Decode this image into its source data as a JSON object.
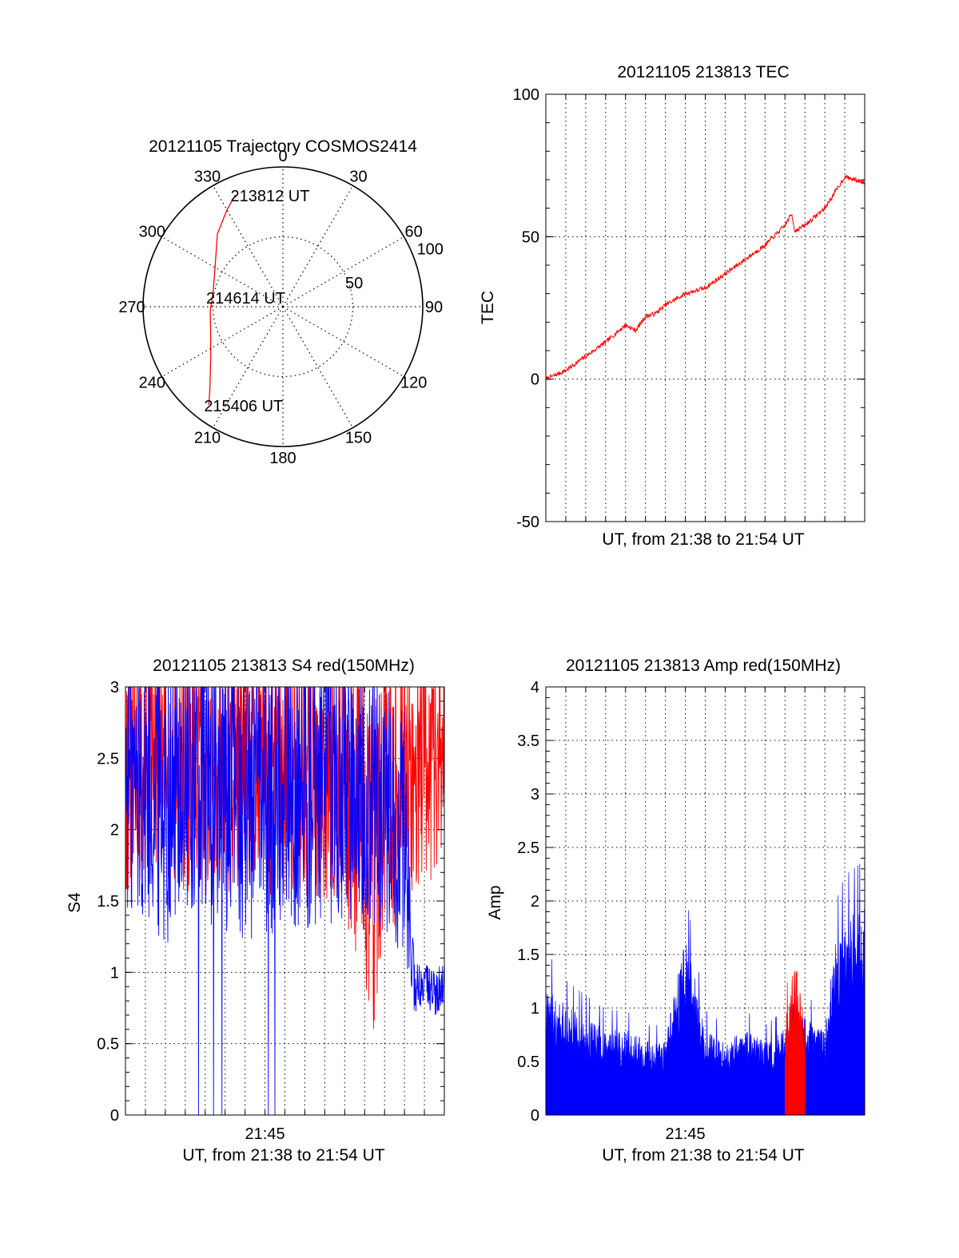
{
  "chart_data": [
    {
      "type": "scatter",
      "projection": "polar",
      "title": "20121105 Trajectory COSMOS2414",
      "angle_ticks": [
        "0",
        "30",
        "60",
        "90",
        "120",
        "150",
        "180",
        "210",
        "240",
        "270",
        "300",
        "330"
      ],
      "radius_labels": [
        "50",
        "100"
      ],
      "rlim": [
        0,
        100
      ],
      "grid": true,
      "series": [
        {
          "color": "#ff0000",
          "points_az_r": [
            [
              337,
              87
            ],
            [
              330,
              80
            ],
            [
              318,
              70
            ],
            [
              300,
              56
            ],
            [
              282,
              51
            ],
            [
              267,
              52
            ],
            [
              250,
              55
            ],
            [
              235,
              63
            ],
            [
              222,
              78
            ],
            [
              217,
              88
            ]
          ]
        }
      ],
      "annotations": [
        {
          "text": "213812 UT",
          "az": 337,
          "r": 87
        },
        {
          "text": "214614 UT",
          "az": 0,
          "r": 0
        },
        {
          "text": "215406 UT",
          "az": 217,
          "r": 88
        }
      ]
    },
    {
      "type": "line",
      "title": "20121105 213813 TEC",
      "xlabel": "UT, from 21:38 to 21:54 UT",
      "ylabel": "TEC",
      "xlim": [
        "21:38",
        "21:54"
      ],
      "ylim": [
        -50,
        100
      ],
      "yticks": [
        "-50",
        "0",
        "50",
        "100"
      ],
      "grid": true,
      "series": [
        {
          "color": "#ff0000",
          "x": [
            "21:38",
            "21:39",
            "21:40",
            "21:41",
            "21:42",
            "21:42:30",
            "21:43",
            "21:43:30",
            "21:44",
            "21:45",
            "21:46",
            "21:47",
            "21:48",
            "21:49",
            "21:50",
            "21:50:20",
            "21:50:30",
            "21:51",
            "21:52",
            "21:53",
            "21:54"
          ],
          "y": [
            0,
            3,
            8,
            13,
            19,
            17,
            22,
            23,
            26,
            30,
            32,
            37,
            42,
            47,
            54,
            58,
            52,
            54,
            60,
            71,
            69
          ]
        }
      ]
    },
    {
      "type": "line",
      "title": "20121105 213813 S4 red(150MHz)",
      "xlabel": "UT, from 21:38 to 21:54 UT",
      "ylabel": "S4",
      "xlim": [
        "21:38",
        "21:54"
      ],
      "ylim": [
        0,
        3
      ],
      "xticks": [
        "21:45"
      ],
      "yticks": [
        "0",
        "0.5",
        "1",
        "1.5",
        "2",
        "2.5",
        "3"
      ],
      "grid": true,
      "series": [
        {
          "color": "#ff0000",
          "x": [
            "21:38",
            "21:40",
            "21:42",
            "21:44",
            "21:46",
            "21:48",
            "21:49",
            "21:50",
            "21:50:30",
            "21:51",
            "21:52",
            "21:53",
            "21:54"
          ],
          "y_low": [
            1.5,
            1.6,
            1.5,
            1.6,
            1.5,
            1.5,
            1.4,
            0.9,
            0.5,
            1.1,
            1.5,
            1.6,
            1.7
          ],
          "y_high": [
            3,
            3,
            3,
            3,
            3,
            3,
            3,
            2.9,
            2.7,
            2.9,
            3,
            3,
            3
          ]
        },
        {
          "color": "#0000ff",
          "x": [
            "21:38",
            "21:40",
            "21:42",
            "21:44",
            "21:46",
            "21:48",
            "21:50",
            "21:52",
            "21:52:30",
            "21:53",
            "21:54"
          ],
          "y_low": [
            1.4,
            1.2,
            1.3,
            1.2,
            1.3,
            1.3,
            1.4,
            1.1,
            0.7,
            0.7,
            0.7
          ],
          "y_high": [
            3,
            3,
            3,
            3,
            3,
            3,
            3,
            2.6,
            1.0,
            1.0,
            1.0
          ],
          "spikes_to_zero": [
            "21:41:40",
            "21:42:25",
            "21:42:50",
            "21:45:10",
            "21:45:30"
          ]
        }
      ]
    },
    {
      "type": "area",
      "title": "20121105 213813 Amp red(150MHz)",
      "xlabel": "UT, from 21:38 to 21:54 UT",
      "ylabel": "Amp",
      "xlim": [
        "21:38",
        "21:54"
      ],
      "ylim": [
        0,
        4
      ],
      "xticks": [
        "21:45"
      ],
      "yticks": [
        "0",
        "0.5",
        "1",
        "1.5",
        "2",
        "2.5",
        "3",
        "3.5",
        "4"
      ],
      "grid": true,
      "series": [
        {
          "color": "#0000ff",
          "x": [
            "21:38",
            "21:39",
            "21:40",
            "21:41",
            "21:42",
            "21:43",
            "21:44",
            "21:45",
            "21:46",
            "21:47",
            "21:48",
            "21:49",
            "21:50",
            "21:51",
            "21:52",
            "21:52:30",
            "21:53",
            "21:54"
          ],
          "y": [
            1.1,
            0.9,
            0.8,
            0.7,
            0.7,
            0.6,
            0.6,
            1.5,
            0.7,
            0.6,
            0.7,
            0.6,
            0.7,
            0.8,
            0.7,
            1.4,
            1.6,
            1.7
          ]
        },
        {
          "color": "#ff0000",
          "x": [
            "21:50",
            "21:50:15",
            "21:50:30",
            "21:50:45",
            "21:51"
          ],
          "y": [
            0.7,
            1.1,
            1.3,
            1.0,
            0.8
          ]
        }
      ]
    }
  ]
}
